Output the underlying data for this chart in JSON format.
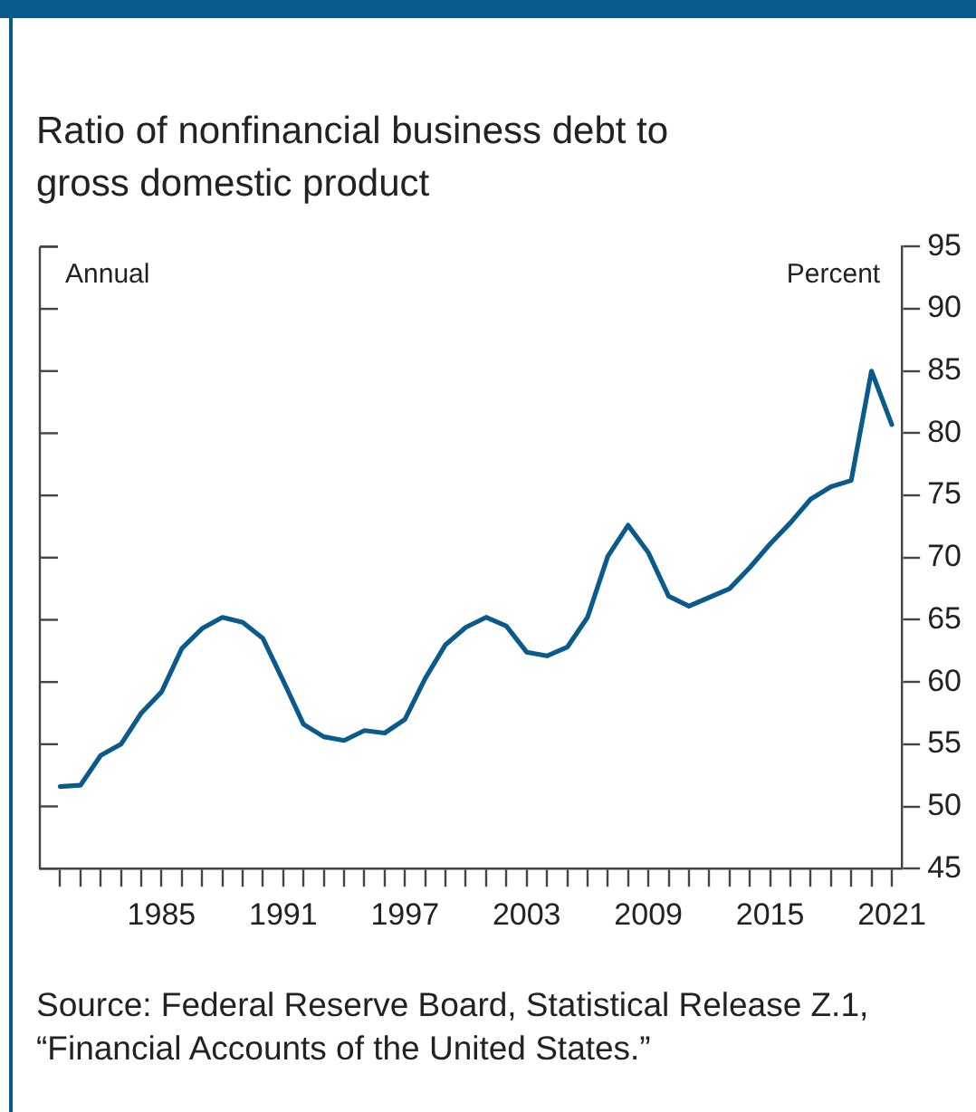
{
  "chart_data": {
    "type": "line",
    "title": "Ratio of nonfinancial business debt to gross domestic product",
    "annotations": [
      "Annual",
      "Percent",
      "Source: Federal Reserve Board, Statistical Release Z.1, “Financial Accounts of the United States.”"
    ],
    "x": [
      1980,
      1981,
      1982,
      1983,
      1984,
      1985,
      1986,
      1987,
      1988,
      1989,
      1990,
      1991,
      1992,
      1993,
      1994,
      1995,
      1996,
      1997,
      1998,
      1999,
      2000,
      2001,
      2002,
      2003,
      2004,
      2005,
      2006,
      2007,
      2008,
      2009,
      2010,
      2011,
      2012,
      2013,
      2014,
      2015,
      2016,
      2017,
      2018,
      2019,
      2020,
      2021
    ],
    "series": [
      {
        "color": "#0a5a8c",
        "values": [
          51.6,
          51.7,
          54.1,
          55,
          57.5,
          59.2,
          62.7,
          64.3,
          65.2,
          64.8,
          63.5,
          60.1,
          56.6,
          55.6,
          55.3,
          56.1,
          55.9,
          57,
          60.3,
          63,
          64.4,
          65.2,
          64.5,
          62.4,
          62.1,
          62.8,
          65.2,
          70.1,
          72.6,
          70.4,
          66.9,
          66.1,
          66.8,
          67.5,
          69.2,
          71.1,
          72.8,
          74.7,
          75.7,
          76.2,
          85,
          80.7
        ]
      }
    ],
    "xlim": [
      1979,
      2021.5
    ],
    "xticks": [
      {
        "value": 1980,
        "label": null
      },
      {
        "value": 1981,
        "label": null
      },
      {
        "value": 1982,
        "label": null
      },
      {
        "value": 1983,
        "label": null
      },
      {
        "value": 1984,
        "label": null
      },
      1985,
      {
        "value": 1986,
        "label": null
      },
      {
        "value": 1987,
        "label": null
      },
      {
        "value": 1988,
        "label": null
      },
      {
        "value": 1989,
        "label": null
      },
      {
        "value": 1990,
        "label": null
      },
      1991,
      {
        "value": 1992,
        "label": null
      },
      {
        "value": 1993,
        "label": null
      },
      {
        "value": 1994,
        "label": null
      },
      {
        "value": 1995,
        "label": null
      },
      {
        "value": 1996,
        "label": null
      },
      1997,
      {
        "value": 1998,
        "label": null
      },
      {
        "value": 1999,
        "label": null
      },
      {
        "value": 2000,
        "label": null
      },
      {
        "value": 2001,
        "label": null
      },
      {
        "value": 2002,
        "label": null
      },
      2003,
      {
        "value": 2004,
        "label": null
      },
      {
        "value": 2005,
        "label": null
      },
      {
        "value": 2006,
        "label": null
      },
      {
        "value": 2007,
        "label": null
      },
      {
        "value": 2008,
        "label": null
      },
      2009,
      {
        "value": 2010,
        "label": null
      },
      {
        "value": 2011,
        "label": null
      },
      {
        "value": 2012,
        "label": null
      },
      {
        "value": 2013,
        "label": null
      },
      {
        "value": 2014,
        "label": null
      },
      2015,
      {
        "value": 2016,
        "label": null
      },
      {
        "value": 2017,
        "label": null
      },
      {
        "value": 2018,
        "label": null
      },
      {
        "value": 2019,
        "label": null
      },
      {
        "value": 2020,
        "label": null
      },
      2021
    ],
    "ylim": [
      45,
      95
    ],
    "yticks": [
      45,
      50,
      55,
      60,
      65,
      70,
      75,
      80,
      85,
      90,
      95
    ],
    "grid": false,
    "legend": false,
    "marker": "none",
    "line_style": "solid"
  }
}
